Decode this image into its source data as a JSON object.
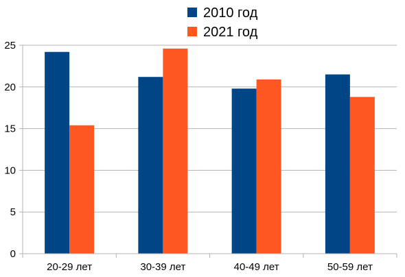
{
  "chart_data": {
    "type": "bar",
    "categories": [
      "20-29 лет",
      "30-39 лет",
      "40-49 лет",
      "50-59 лет"
    ],
    "series": [
      {
        "name": "2010 год",
        "color": "#004586",
        "values": [
          24.2,
          21.2,
          19.8,
          21.5
        ]
      },
      {
        "name": "2021 год",
        "color": "#ff5722",
        "values": [
          15.4,
          24.6,
          20.9,
          18.8
        ]
      }
    ],
    "ylim": [
      0,
      25
    ],
    "yticks": [
      "0",
      "5",
      "10",
      "15",
      "20",
      "25"
    ],
    "grid": true,
    "legend_position": "top-center",
    "title": "",
    "xlabel": "",
    "ylabel": ""
  }
}
